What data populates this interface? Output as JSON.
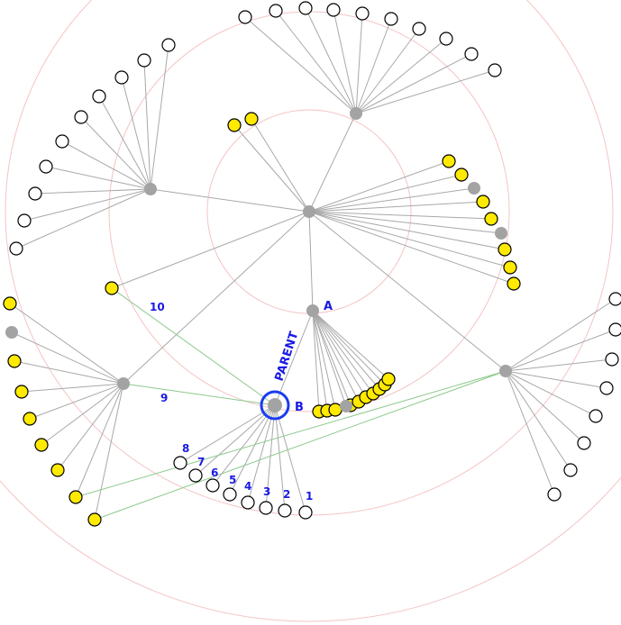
{
  "labels": {
    "parent": "PARENT",
    "node_a": "A",
    "node_b": "B",
    "edge_numbers": [
      "1",
      "2",
      "3",
      "4",
      "5",
      "6",
      "7",
      "8",
      "9",
      "10"
    ]
  },
  "colors": {
    "ring": "#f4c4c4",
    "edge": "#a8a8a8",
    "highlight_edge": "#8cc98c",
    "hub": "#a3a3a3",
    "yellow_node": "#ffea00",
    "white_node": "#ffffff",
    "label": "#1a1ae6",
    "focus": "#1a3cf0"
  }
}
